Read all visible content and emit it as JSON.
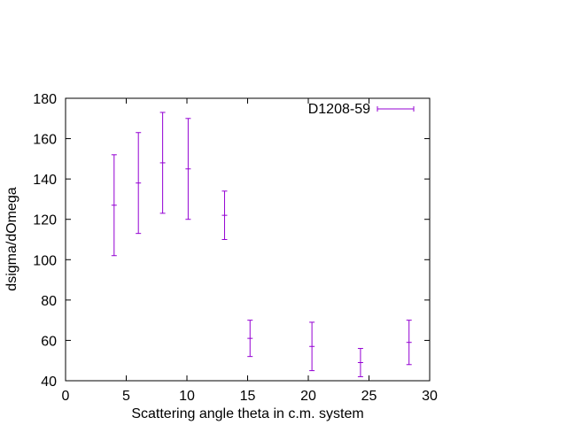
{
  "chart_data": {
    "type": "scatter",
    "error_bars": true,
    "title": "",
    "xlabel": "Scattering angle theta in c.m. system",
    "ylabel": "dsigma/dOmega",
    "xlim": [
      0,
      30
    ],
    "ylim": [
      40,
      180
    ],
    "xticks": [
      0,
      5,
      10,
      15,
      20,
      25,
      30
    ],
    "yticks": [
      40,
      60,
      80,
      100,
      120,
      140,
      160,
      180
    ],
    "grid": false,
    "legend_position": "top-right",
    "series": [
      {
        "name": "D1208-59",
        "color": "#9400d3",
        "points": [
          {
            "x": 4.0,
            "y": 127,
            "ylow": 102,
            "yhigh": 152
          },
          {
            "x": 6.0,
            "y": 138,
            "ylow": 113,
            "yhigh": 163
          },
          {
            "x": 8.0,
            "y": 148,
            "ylow": 123,
            "yhigh": 173
          },
          {
            "x": 10.1,
            "y": 145,
            "ylow": 120,
            "yhigh": 170
          },
          {
            "x": 13.1,
            "y": 122,
            "ylow": 110,
            "yhigh": 134
          },
          {
            "x": 15.2,
            "y": 61,
            "ylow": 52,
            "yhigh": 70
          },
          {
            "x": 20.3,
            "y": 57,
            "ylow": 45,
            "yhigh": 69
          },
          {
            "x": 24.3,
            "y": 49,
            "ylow": 42,
            "yhigh": 56
          },
          {
            "x": 28.3,
            "y": 59,
            "ylow": 48,
            "yhigh": 70
          }
        ]
      }
    ]
  }
}
